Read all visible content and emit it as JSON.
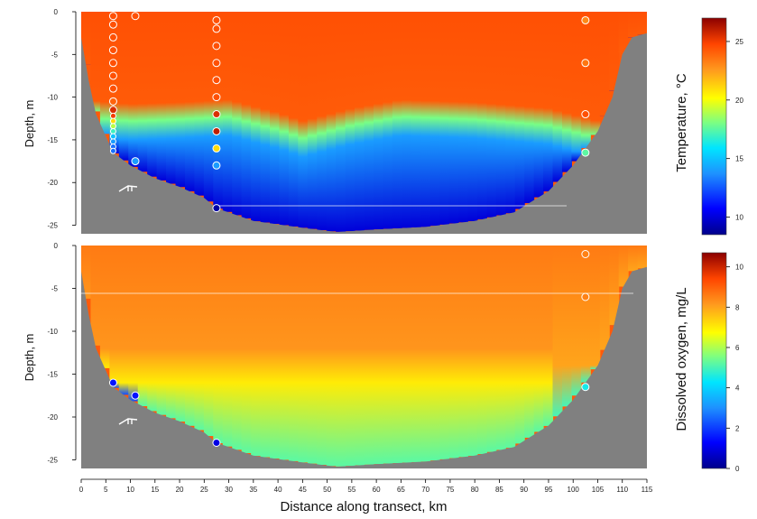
{
  "colors": {
    "bathymetry": "#808080",
    "colormap": [
      "#00008b",
      "#0000ff",
      "#1e90ff",
      "#00e5ff",
      "#7fff7f",
      "#ffff00",
      "#ff9a1e",
      "#ff4500",
      "#8b0000"
    ],
    "station_marker_edge": "#ffffff"
  },
  "chart_data": [
    {
      "type": "heatmap",
      "panel": "top",
      "ylabel": "Depth, m",
      "xlabel": "Distance along transect, km",
      "xlim": [
        0,
        115
      ],
      "ylim": [
        -26,
        0
      ],
      "y_ticks": [
        0,
        -5,
        -10,
        -15,
        -20,
        -25
      ],
      "colorbar": {
        "label": "Temperature, °C",
        "range": [
          8.5,
          27
        ],
        "ticks": [
          10,
          15,
          20,
          25
        ]
      },
      "surface_value": 24.5,
      "thermocline_depth": [
        {
          "x": 0,
          "depth": -11.5
        },
        {
          "x": 10,
          "depth": -12
        },
        {
          "x": 20,
          "depth": -11.8
        },
        {
          "x": 30,
          "depth": -11.5
        },
        {
          "x": 40,
          "depth": -13
        },
        {
          "x": 45,
          "depth": -14
        },
        {
          "x": 55,
          "depth": -12.5
        },
        {
          "x": 65,
          "depth": -11.5
        },
        {
          "x": 80,
          "depth": -11.8
        },
        {
          "x": 95,
          "depth": -12.5
        },
        {
          "x": 105,
          "depth": -14
        },
        {
          "x": 115,
          "depth": -14
        }
      ],
      "bottom_water_value": 10,
      "bottom_profile": [
        {
          "x": 0,
          "depth": -3
        },
        {
          "x": 1.5,
          "depth": -8
        },
        {
          "x": 3,
          "depth": -12
        },
        {
          "x": 6.5,
          "depth": -16.5
        },
        {
          "x": 10,
          "depth": -18
        },
        {
          "x": 15,
          "depth": -19.5
        },
        {
          "x": 20,
          "depth": -20.5
        },
        {
          "x": 25,
          "depth": -21.8
        },
        {
          "x": 27.5,
          "depth": -23
        },
        {
          "x": 35,
          "depth": -24.5
        },
        {
          "x": 45,
          "depth": -25.3
        },
        {
          "x": 52,
          "depth": -25.8
        },
        {
          "x": 60,
          "depth": -25.5
        },
        {
          "x": 70,
          "depth": -25.2
        },
        {
          "x": 80,
          "depth": -24.5
        },
        {
          "x": 88,
          "depth": -23.5
        },
        {
          "x": 95,
          "depth": -21
        },
        {
          "x": 100,
          "depth": -18
        },
        {
          "x": 105,
          "depth": -14
        },
        {
          "x": 108,
          "depth": -10
        },
        {
          "x": 110,
          "depth": -5
        },
        {
          "x": 112,
          "depth": -3
        },
        {
          "x": 115,
          "depth": -2.5
        }
      ],
      "stations": [
        {
          "x": 6.5,
          "depth": -0.5,
          "value": 24.5
        },
        {
          "x": 6.5,
          "depth": -1.5,
          "value": 24.5
        },
        {
          "x": 6.5,
          "depth": -3,
          "value": 24.5
        },
        {
          "x": 6.5,
          "depth": -4.5,
          "value": 24.5
        },
        {
          "x": 6.5,
          "depth": -6,
          "value": 24.5
        },
        {
          "x": 6.5,
          "depth": -7.5,
          "value": 24.5
        },
        {
          "x": 6.5,
          "depth": -9,
          "value": 24.5
        },
        {
          "x": 6.5,
          "depth": -10.5,
          "value": 24
        },
        {
          "x": 6.5,
          "depth": -11.5,
          "value": 25.5
        },
        {
          "x": 6.5,
          "depth": -12.2,
          "value": 25
        },
        {
          "x": 6.5,
          "depth": -12.8,
          "value": 21
        },
        {
          "x": 6.5,
          "depth": -13.4,
          "value": 19
        },
        {
          "x": 6.5,
          "depth": -14,
          "value": 17
        },
        {
          "x": 6.5,
          "depth": -14.6,
          "value": 15
        },
        {
          "x": 6.5,
          "depth": -15.2,
          "value": 14
        },
        {
          "x": 6.5,
          "depth": -15.8,
          "value": 13
        },
        {
          "x": 6.5,
          "depth": -16.3,
          "value": 13
        },
        {
          "x": 11,
          "depth": -0.5,
          "value": 24.5
        },
        {
          "x": 11,
          "depth": -17.5,
          "value": 14
        },
        {
          "x": 27.5,
          "depth": -1,
          "value": 24.5
        },
        {
          "x": 27.5,
          "depth": -2,
          "value": 24.5
        },
        {
          "x": 27.5,
          "depth": -4,
          "value": 24.5
        },
        {
          "x": 27.5,
          "depth": -6,
          "value": 24.5
        },
        {
          "x": 27.5,
          "depth": -8,
          "value": 24.5
        },
        {
          "x": 27.5,
          "depth": -10,
          "value": 24.5
        },
        {
          "x": 27.5,
          "depth": -12,
          "value": 25.5
        },
        {
          "x": 27.5,
          "depth": -14,
          "value": 26
        },
        {
          "x": 27.5,
          "depth": -16,
          "value": 21
        },
        {
          "x": 27.5,
          "depth": -18,
          "value": 14
        },
        {
          "x": 27.5,
          "depth": -23,
          "value": 9
        },
        {
          "x": 102.5,
          "depth": -1,
          "value": 23
        },
        {
          "x": 102.5,
          "depth": -6,
          "value": 23.5
        },
        {
          "x": 102.5,
          "depth": -12,
          "value": 24.5
        },
        {
          "x": 102.5,
          "depth": -16.5,
          "value": 17.5
        }
      ]
    },
    {
      "type": "heatmap",
      "panel": "bottom",
      "ylabel": "Depth, m",
      "xlabel": "Distance along transect, km",
      "xlim": [
        0,
        115
      ],
      "ylim": [
        -26,
        0
      ],
      "y_ticks": [
        0,
        -5,
        -10,
        -15,
        -20,
        -25
      ],
      "x_ticks": [
        0,
        5,
        10,
        15,
        20,
        25,
        30,
        35,
        40,
        45,
        50,
        55,
        60,
        65,
        70,
        75,
        80,
        85,
        90,
        95,
        100,
        105,
        110,
        115
      ],
      "colorbar": {
        "label": "Dissolved oxygen, mg/L",
        "range": [
          0,
          10.7
        ],
        "ticks": [
          0,
          2,
          4,
          6,
          8,
          10
        ]
      },
      "surface_value": 8.6,
      "bottom_profile": [
        {
          "x": 0,
          "depth": -3
        },
        {
          "x": 1.5,
          "depth": -8
        },
        {
          "x": 3,
          "depth": -12
        },
        {
          "x": 6.5,
          "depth": -16.5
        },
        {
          "x": 10,
          "depth": -18
        },
        {
          "x": 15,
          "depth": -19.5
        },
        {
          "x": 20,
          "depth": -20.5
        },
        {
          "x": 25,
          "depth": -21.8
        },
        {
          "x": 27.5,
          "depth": -23
        },
        {
          "x": 35,
          "depth": -24.5
        },
        {
          "x": 45,
          "depth": -25.3
        },
        {
          "x": 52,
          "depth": -25.8
        },
        {
          "x": 60,
          "depth": -25.5
        },
        {
          "x": 70,
          "depth": -25.2
        },
        {
          "x": 80,
          "depth": -24.5
        },
        {
          "x": 88,
          "depth": -23.5
        },
        {
          "x": 95,
          "depth": -21
        },
        {
          "x": 100,
          "depth": -18
        },
        {
          "x": 105,
          "depth": -14
        },
        {
          "x": 108,
          "depth": -10
        },
        {
          "x": 110,
          "depth": -5
        },
        {
          "x": 112,
          "depth": -3
        },
        {
          "x": 115,
          "depth": -2.5
        }
      ],
      "stations": [
        {
          "x": 6.5,
          "depth": -16,
          "value": 1.5
        },
        {
          "x": 11,
          "depth": -17.5,
          "value": 1.5
        },
        {
          "x": 27.5,
          "depth": -23,
          "value": 1.0
        },
        {
          "x": 102.5,
          "depth": -1,
          "value": 8.5
        },
        {
          "x": 102.5,
          "depth": -6,
          "value": 8.5
        },
        {
          "x": 102.5,
          "depth": -16.5,
          "value": 4.5
        }
      ]
    }
  ]
}
